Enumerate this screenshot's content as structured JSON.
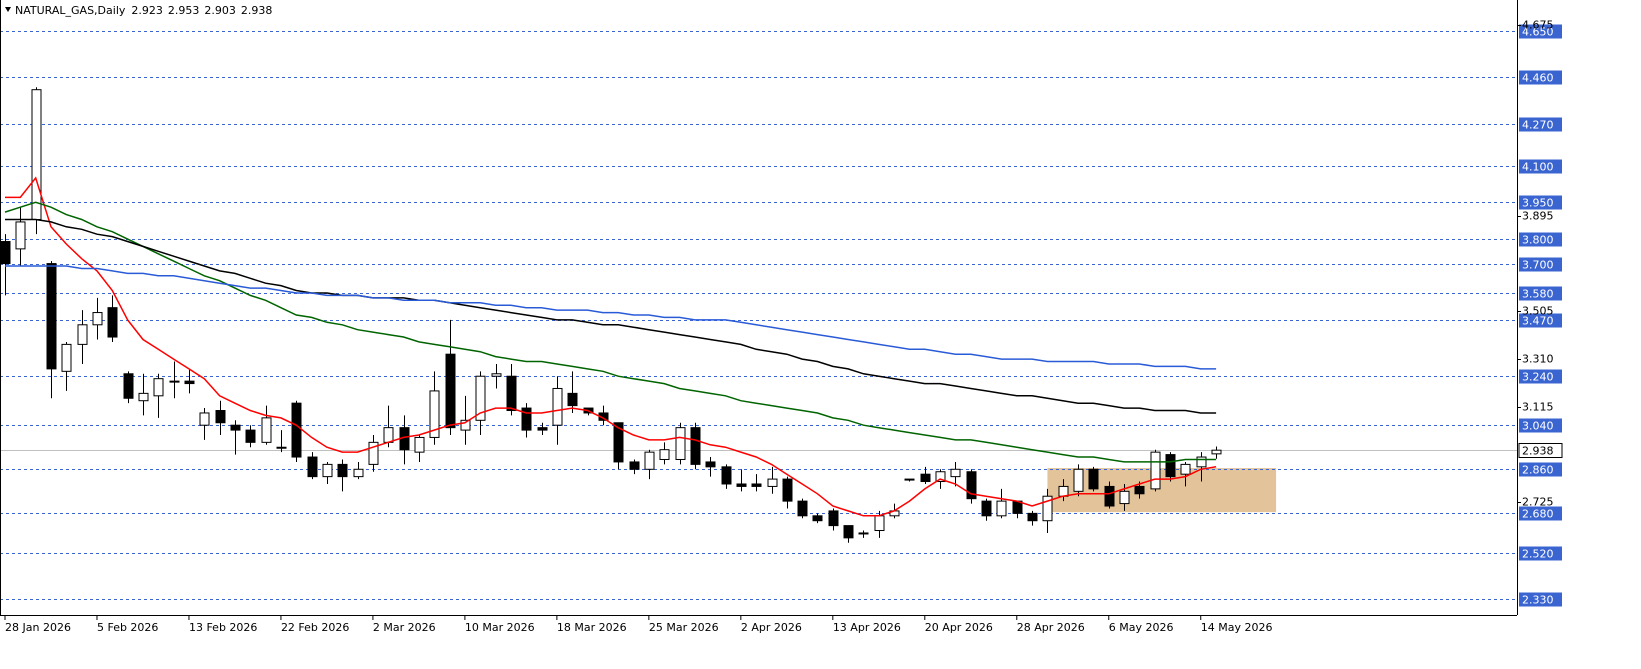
{
  "chart_data": {
    "type": "candlestick",
    "title": "NATURAL_GAS,Daily",
    "categories": [
      "28 Jan 2026",
      null,
      null,
      null,
      null,
      null,
      "5 Feb 2026",
      null,
      null,
      null,
      null,
      null,
      "13 Feb 2026",
      null,
      null,
      null,
      null,
      null,
      "22 Feb 2026",
      null,
      null,
      null,
      null,
      null,
      "2 Mar 2026",
      null,
      null,
      null,
      null,
      null,
      "10 Mar 2026",
      null,
      null,
      null,
      null,
      null,
      "18 Mar 2026",
      null,
      null,
      null,
      null,
      null,
      "25 Mar 2026",
      null,
      null,
      null,
      null,
      null,
      "2 Apr 2026",
      null,
      null,
      null,
      null,
      null,
      "13 Apr 2026",
      null,
      null,
      null,
      null,
      null,
      "20 Apr 2026",
      null,
      null,
      null,
      null,
      null,
      "28 Apr 2026",
      null,
      null,
      null,
      null,
      null,
      "6 May 2026",
      null,
      null,
      null,
      null,
      null,
      "14 May 2026",
      null
    ],
    "open": [
      3.79,
      3.76,
      3.88,
      3.7,
      3.26,
      3.37,
      3.45,
      3.52,
      3.25,
      3.14,
      3.16,
      3.22,
      3.22,
      3.04,
      3.1,
      3.04,
      3.02,
      2.97,
      2.95,
      3.13,
      2.91,
      2.83,
      2.88,
      2.83,
      2.88,
      2.97,
      3.03,
      2.93,
      2.99,
      3.33,
      3.02,
      3.06,
      3.24,
      3.24,
      3.11,
      3.03,
      3.04,
      3.17,
      3.11,
      3.09,
      3.05,
      2.89,
      2.86,
      2.9,
      2.9,
      3.03,
      2.89,
      2.87,
      2.8,
      2.8,
      2.79,
      2.82,
      2.73,
      2.67,
      2.69,
      2.63,
      2.6,
      2.61,
      2.67,
      2.82,
      2.84,
      2.81,
      2.83,
      2.85,
      2.73,
      2.67,
      2.73,
      2.68,
      2.65,
      2.75,
      2.77,
      2.86,
      2.79,
      2.72,
      2.79,
      2.78,
      2.92,
      2.84,
      2.87,
      2.923
    ],
    "high": [
      3.82,
      3.93,
      4.42,
      3.71,
      3.38,
      3.51,
      3.56,
      3.57,
      3.26,
      3.25,
      3.25,
      3.3,
      3.27,
      3.11,
      3.14,
      3.06,
      3.04,
      3.12,
      3.02,
      3.14,
      2.93,
      2.89,
      2.9,
      2.89,
      3.0,
      3.12,
      3.08,
      3.0,
      3.26,
      3.47,
      3.16,
      3.26,
      3.29,
      3.29,
      3.13,
      3.05,
      3.24,
      3.26,
      3.11,
      3.12,
      3.05,
      2.9,
      2.94,
      2.97,
      3.05,
      3.05,
      2.91,
      2.88,
      2.86,
      2.84,
      2.87,
      2.83,
      2.74,
      2.68,
      2.7,
      2.63,
      2.61,
      2.69,
      2.72,
      2.82,
      2.87,
      2.86,
      2.89,
      2.86,
      2.74,
      2.78,
      2.73,
      2.69,
      2.78,
      2.82,
      2.88,
      2.87,
      2.81,
      2.8,
      2.81,
      2.94,
      2.93,
      2.89,
      2.93,
      2.953
    ],
    "low": [
      3.57,
      3.69,
      3.82,
      3.15,
      3.18,
      3.29,
      3.39,
      3.38,
      3.13,
      3.08,
      3.07,
      3.15,
      3.17,
      2.98,
      3.0,
      2.92,
      2.95,
      2.96,
      2.93,
      2.89,
      2.82,
      2.8,
      2.77,
      2.82,
      2.85,
      2.95,
      2.88,
      2.89,
      2.96,
      3.0,
      2.96,
      3.0,
      3.19,
      3.08,
      2.99,
      3.0,
      2.96,
      3.09,
      3.08,
      3.04,
      2.86,
      2.84,
      2.82,
      2.88,
      2.88,
      2.86,
      2.83,
      2.78,
      2.77,
      2.77,
      2.76,
      2.7,
      2.66,
      2.64,
      2.61,
      2.56,
      2.58,
      2.58,
      2.66,
      2.81,
      2.8,
      2.78,
      2.79,
      2.72,
      2.65,
      2.66,
      2.66,
      2.63,
      2.6,
      2.73,
      2.75,
      2.77,
      2.7,
      2.69,
      2.74,
      2.77,
      2.81,
      2.79,
      2.81,
      2.903
    ],
    "close": [
      3.7,
      3.87,
      4.41,
      3.27,
      3.37,
      3.45,
      3.5,
      3.4,
      3.15,
      3.17,
      3.23,
      3.22,
      3.21,
      3.09,
      3.05,
      3.02,
      2.97,
      3.07,
      2.95,
      2.91,
      2.83,
      2.88,
      2.83,
      2.86,
      2.97,
      3.03,
      2.94,
      2.99,
      3.18,
      3.03,
      3.06,
      3.24,
      3.25,
      3.1,
      3.02,
      3.02,
      3.19,
      3.12,
      3.09,
      3.06,
      2.89,
      2.86,
      2.93,
      2.94,
      3.03,
      2.88,
      2.87,
      2.8,
      2.79,
      2.79,
      2.82,
      2.73,
      2.67,
      2.65,
      2.63,
      2.58,
      2.6,
      2.67,
      2.69,
      2.82,
      2.81,
      2.85,
      2.86,
      2.74,
      2.67,
      2.73,
      2.68,
      2.65,
      2.75,
      2.79,
      2.86,
      2.78,
      2.71,
      2.77,
      2.76,
      2.93,
      2.83,
      2.88,
      2.91,
      2.938
    ],
    "up_color": "#ffffff",
    "down_color": "#000000",
    "moving_averages": [
      {
        "color": "#ff0000",
        "values": [
          3.97,
          3.97,
          4.05,
          3.85,
          3.78,
          3.72,
          3.67,
          3.59,
          3.47,
          3.39,
          3.35,
          3.31,
          3.27,
          3.23,
          3.16,
          3.13,
          3.1,
          3.08,
          3.07,
          3.04,
          2.99,
          2.95,
          2.93,
          2.93,
          2.95,
          2.97,
          2.99,
          3.0,
          3.02,
          3.04,
          3.05,
          3.09,
          3.11,
          3.11,
          3.09,
          3.09,
          3.1,
          3.11,
          3.1,
          3.07,
          3.03,
          3.0,
          2.98,
          2.98,
          2.99,
          2.98,
          2.96,
          2.95,
          2.93,
          2.91,
          2.88,
          2.84,
          2.8,
          2.76,
          2.71,
          2.69,
          2.67,
          2.67,
          2.69,
          2.73,
          2.78,
          2.82,
          2.8,
          2.76,
          2.75,
          2.74,
          2.73,
          2.71,
          2.73,
          2.75,
          2.76,
          2.76,
          2.76,
          2.78,
          2.8,
          2.82,
          2.82,
          2.83,
          2.86,
          2.87
        ]
      },
      {
        "color": "#006400",
        "values": [
          3.91,
          3.93,
          3.95,
          3.93,
          3.9,
          3.88,
          3.85,
          3.83,
          3.8,
          3.77,
          3.74,
          3.71,
          3.68,
          3.65,
          3.63,
          3.6,
          3.57,
          3.55,
          3.52,
          3.49,
          3.48,
          3.46,
          3.45,
          3.43,
          3.42,
          3.41,
          3.4,
          3.38,
          3.37,
          3.36,
          3.35,
          3.34,
          3.32,
          3.31,
          3.3,
          3.3,
          3.29,
          3.28,
          3.27,
          3.26,
          3.24,
          3.23,
          3.22,
          3.21,
          3.19,
          3.18,
          3.17,
          3.16,
          3.14,
          3.13,
          3.12,
          3.11,
          3.1,
          3.09,
          3.07,
          3.06,
          3.04,
          3.03,
          3.02,
          3.01,
          3.0,
          2.99,
          2.98,
          2.98,
          2.97,
          2.96,
          2.95,
          2.94,
          2.93,
          2.92,
          2.91,
          2.91,
          2.9,
          2.89,
          2.89,
          2.89,
          2.89,
          2.9,
          2.9,
          2.9
        ]
      },
      {
        "color": "#000000",
        "values": [
          3.88,
          3.88,
          3.88,
          3.87,
          3.85,
          3.84,
          3.82,
          3.81,
          3.79,
          3.77,
          3.75,
          3.73,
          3.71,
          3.69,
          3.67,
          3.66,
          3.64,
          3.62,
          3.61,
          3.59,
          3.58,
          3.58,
          3.57,
          3.57,
          3.56,
          3.56,
          3.56,
          3.55,
          3.55,
          3.54,
          3.53,
          3.52,
          3.51,
          3.5,
          3.49,
          3.48,
          3.47,
          3.47,
          3.46,
          3.45,
          3.45,
          3.44,
          3.43,
          3.42,
          3.41,
          3.4,
          3.39,
          3.38,
          3.37,
          3.35,
          3.34,
          3.33,
          3.31,
          3.3,
          3.28,
          3.27,
          3.25,
          3.24,
          3.23,
          3.22,
          3.21,
          3.21,
          3.2,
          3.19,
          3.18,
          3.17,
          3.16,
          3.16,
          3.15,
          3.14,
          3.13,
          3.13,
          3.12,
          3.11,
          3.11,
          3.1,
          3.1,
          3.1,
          3.09,
          3.09
        ]
      },
      {
        "color": "#2a5bd7",
        "values": [
          3.69,
          3.69,
          3.69,
          3.69,
          3.69,
          3.68,
          3.68,
          3.67,
          3.66,
          3.66,
          3.65,
          3.65,
          3.64,
          3.63,
          3.62,
          3.61,
          3.6,
          3.6,
          3.59,
          3.58,
          3.58,
          3.57,
          3.57,
          3.57,
          3.56,
          3.56,
          3.55,
          3.55,
          3.55,
          3.54,
          3.54,
          3.54,
          3.53,
          3.53,
          3.52,
          3.52,
          3.51,
          3.51,
          3.51,
          3.5,
          3.5,
          3.49,
          3.49,
          3.48,
          3.48,
          3.47,
          3.47,
          3.47,
          3.46,
          3.45,
          3.44,
          3.43,
          3.42,
          3.41,
          3.4,
          3.39,
          3.38,
          3.37,
          3.36,
          3.35,
          3.35,
          3.34,
          3.33,
          3.33,
          3.32,
          3.31,
          3.31,
          3.31,
          3.3,
          3.3,
          3.3,
          3.3,
          3.29,
          3.29,
          3.29,
          3.28,
          3.28,
          3.28,
          3.27,
          3.27
        ]
      }
    ],
    "zone": {
      "low": 2.685,
      "high": 2.865,
      "color": "#deb887"
    },
    "ylim": [
      2.265,
      4.764
    ],
    "yticks": [
      {
        "value": 4.675,
        "label": "4.675"
      },
      {
        "value": 3.895,
        "label": "3.895"
      },
      {
        "value": 3.505,
        "label": "3.505"
      },
      {
        "value": 3.31,
        "label": "3.310"
      },
      {
        "value": 3.115,
        "label": "3.115"
      },
      {
        "value": 2.725,
        "label": "2.725"
      }
    ],
    "levels": [
      {
        "value": 4.65,
        "label": "4.650"
      },
      {
        "value": 4.46,
        "label": "4.460"
      },
      {
        "value": 4.27,
        "label": "4.270"
      },
      {
        "value": 4.1,
        "label": "4.100"
      },
      {
        "value": 3.95,
        "label": "3.950"
      },
      {
        "value": 3.8,
        "label": "3.800"
      },
      {
        "value": 3.7,
        "label": "3.700"
      },
      {
        "value": 3.58,
        "label": "3.580"
      },
      {
        "value": 3.47,
        "label": "3.470"
      },
      {
        "value": 3.24,
        "label": "3.240"
      },
      {
        "value": 3.04,
        "label": "3.040"
      },
      {
        "value": 2.86,
        "label": "2.860"
      },
      {
        "value": 2.68,
        "label": "2.680"
      },
      {
        "value": 2.52,
        "label": "2.520"
      },
      {
        "value": 2.33,
        "label": "2.330"
      }
    ],
    "level_color": "#3a64d0",
    "last_price": 2.938
  }
}
